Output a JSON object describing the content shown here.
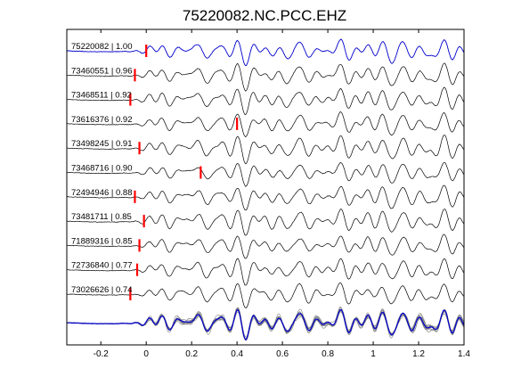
{
  "chart_data": {
    "type": "line",
    "title": "75220082.NC.PCC.EHZ",
    "xlabel": "",
    "ylabel": "",
    "xlim": [
      -0.35,
      1.4
    ],
    "x_ticks": [
      "-0.2",
      "0",
      "0.2",
      "0.4",
      "0.6",
      "0.8",
      "1",
      "1.2",
      "1.4"
    ],
    "x_tick_values": [
      -0.2,
      0,
      0.2,
      0.4,
      0.6,
      0.8,
      1.0,
      1.2,
      1.4
    ],
    "grid": false,
    "legend": "none",
    "reference_color": "#0000cc",
    "trace_color": "#000000",
    "pick_color": "#ff0000",
    "stack_color": "#808080",
    "series": [
      {
        "label": "75220082 | 1.00",
        "pick_time": 0.0,
        "reference": true
      },
      {
        "label": "73460551 | 0.96",
        "pick_time": -0.05
      },
      {
        "label": "73468511 | 0.92",
        "pick_time": -0.07
      },
      {
        "label": "73616376 | 0.92",
        "pick_time": 0.4
      },
      {
        "label": "73498245 | 0.91",
        "pick_time": -0.03
      },
      {
        "label": "73468716 | 0.90",
        "pick_time": 0.24
      },
      {
        "label": "72494946 | 0.88",
        "pick_time": -0.05
      },
      {
        "label": "73481711 | 0.85",
        "pick_time": -0.01
      },
      {
        "label": "71889316 | 0.85",
        "pick_time": -0.03
      },
      {
        "label": "72736840 | 0.77",
        "pick_time": -0.04
      },
      {
        "label": "73026626 | 0.74",
        "pick_time": -0.07
      }
    ]
  }
}
